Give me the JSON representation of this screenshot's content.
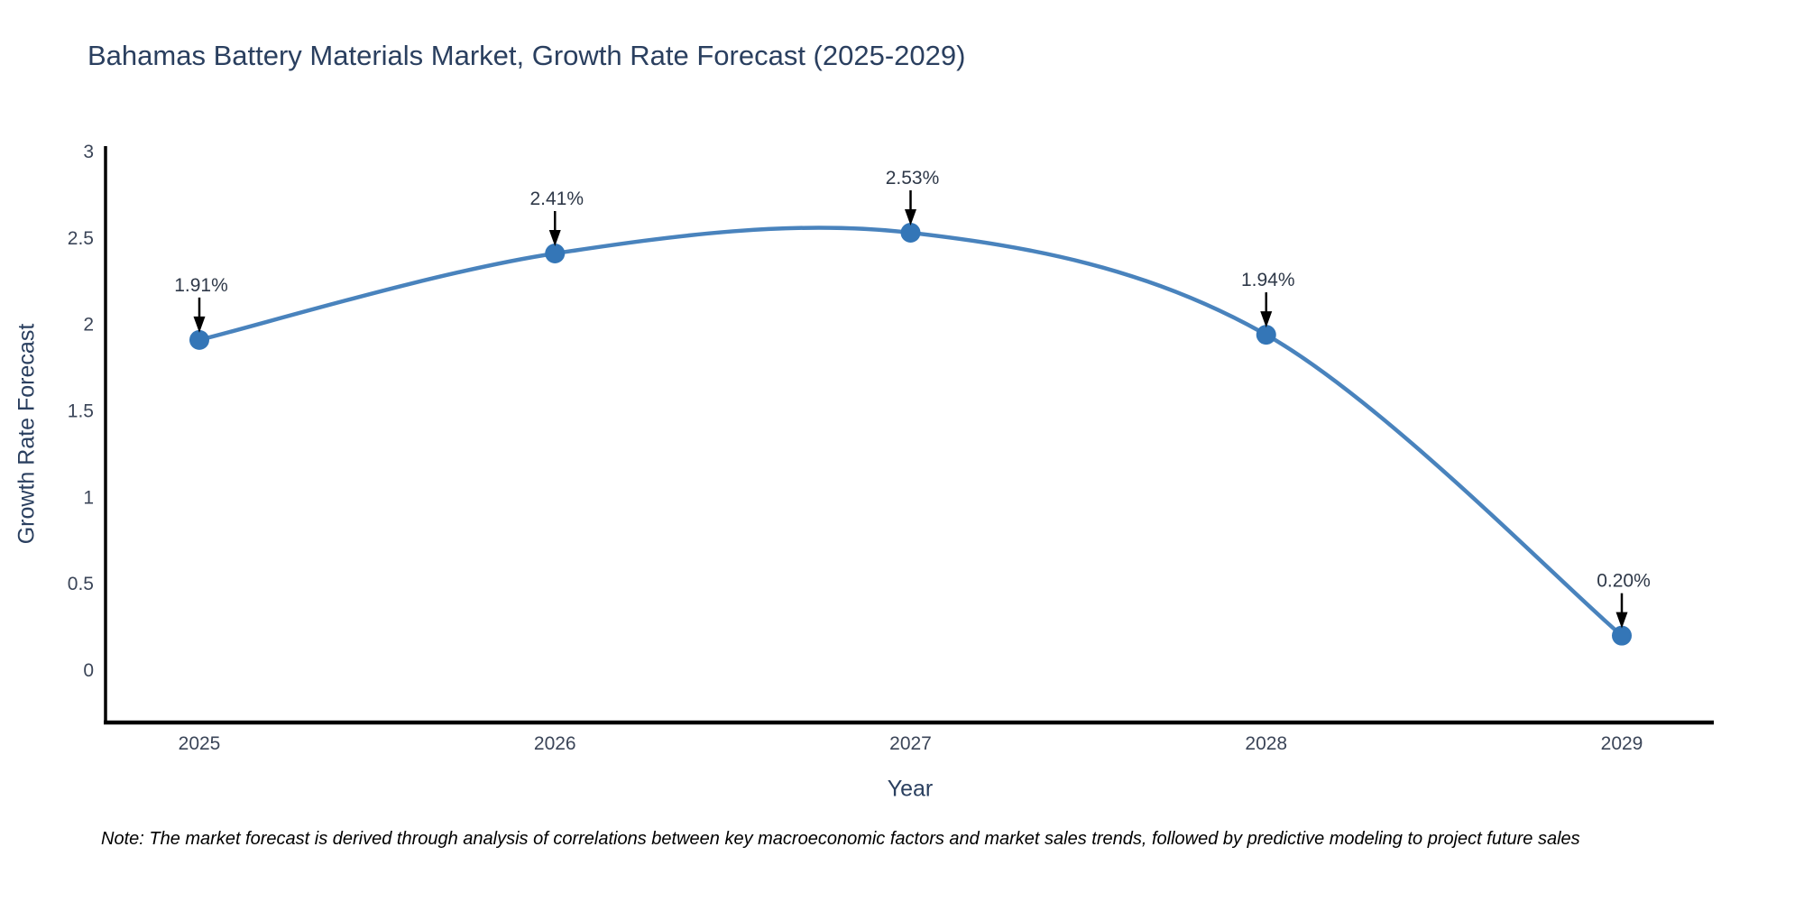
{
  "title": "Bahamas Battery Materials Market, Growth Rate Forecast (2025-2029)",
  "note": "Note: The market forecast is derived through analysis of correlations between key macroeconomic factors and market sales trends, followed by predictive modeling to project future sales",
  "chart_data": {
    "type": "line",
    "title": "Bahamas Battery Materials Market, Growth Rate Forecast (2025-2029)",
    "xlabel": "Year",
    "ylabel": "Growth Rate Forecast",
    "categories": [
      "2025",
      "2026",
      "2027",
      "2028",
      "2029"
    ],
    "values": [
      1.91,
      2.41,
      2.53,
      1.94,
      0.2
    ],
    "point_labels": [
      "1.91%",
      "2.41%",
      "2.53%",
      "1.94%",
      "0.20%"
    ],
    "yticks": [
      0,
      0.5,
      1,
      1.5,
      2,
      2.5,
      3
    ],
    "ylim": [
      -0.3,
      3.03
    ],
    "line_shape": "spline",
    "grid": false,
    "legend": "none",
    "colors": {
      "line": "#4983bd",
      "marker": "#3476b7",
      "axis": "#000000",
      "arrow": "#000000",
      "title_text": "#2a3f5f",
      "tick_text": "#3b4558",
      "annotation_text": "#2e3848",
      "background": "#ffffff"
    }
  }
}
